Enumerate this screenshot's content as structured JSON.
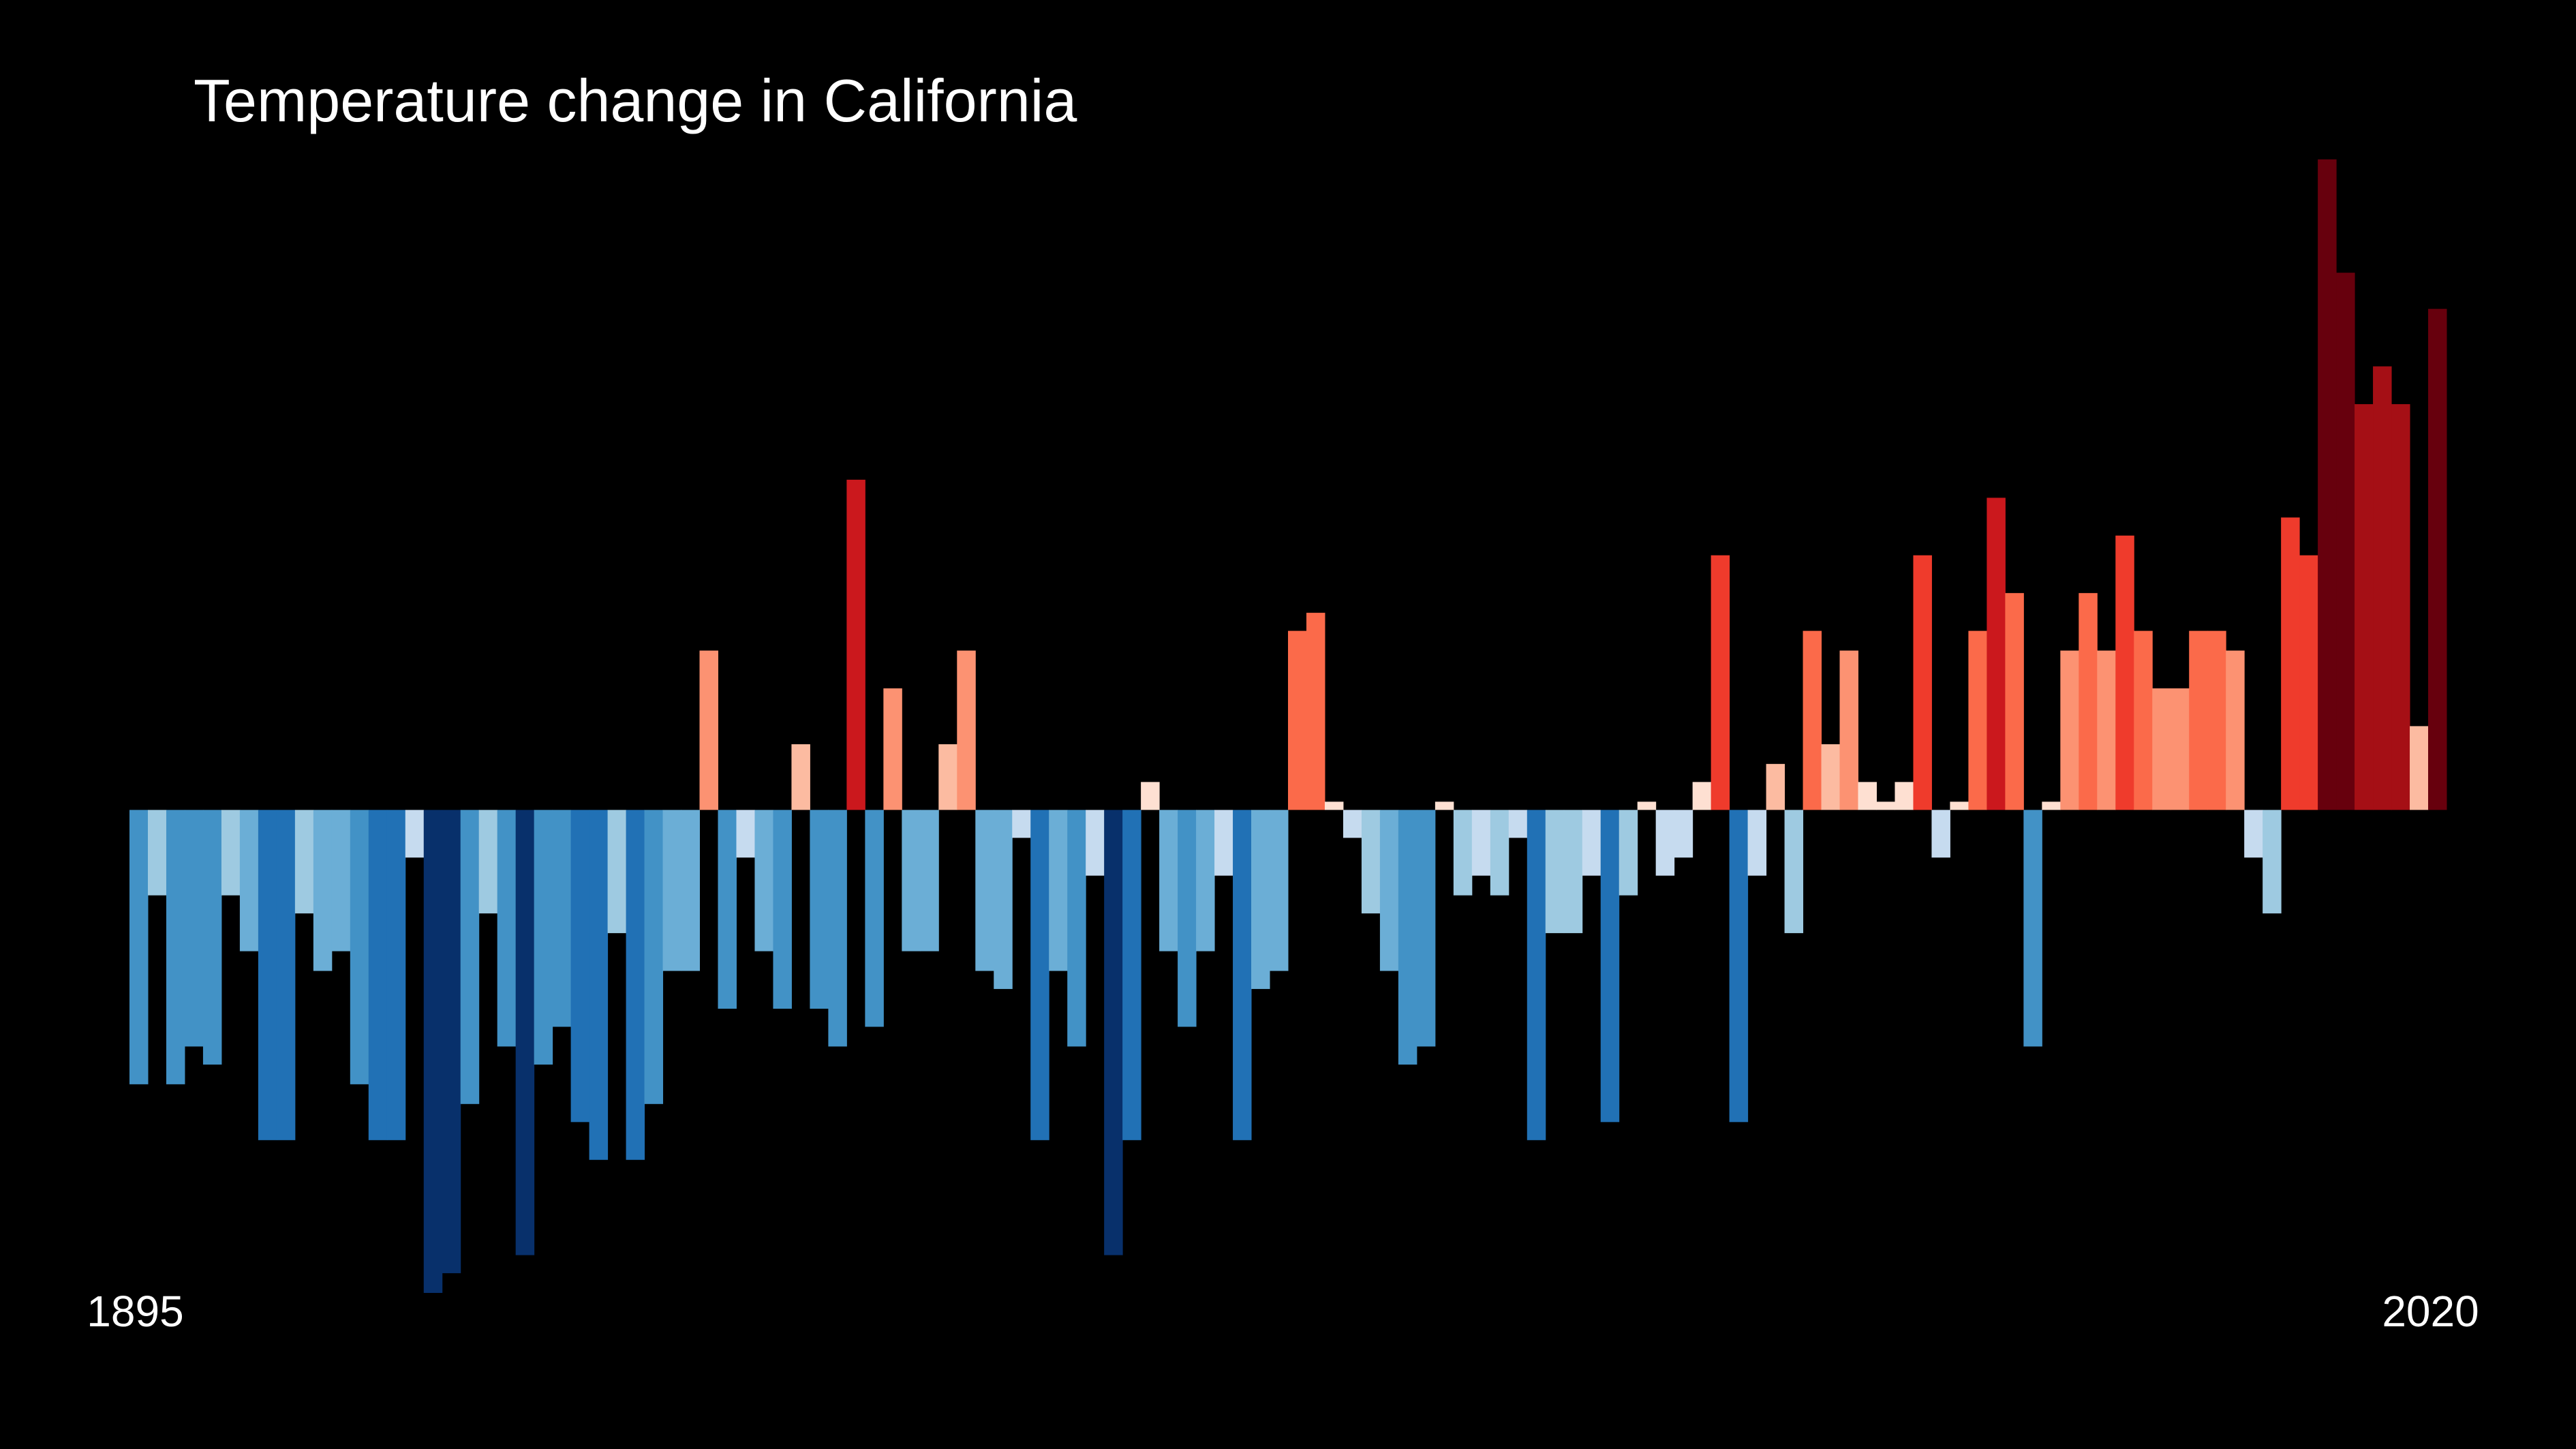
{
  "chart_data": {
    "type": "bar",
    "title": "Temperature change in California",
    "categories": [
      "1895",
      null,
      null,
      null,
      null,
      null,
      null,
      null,
      null,
      null,
      null,
      null,
      null,
      null,
      null,
      null,
      null,
      null,
      null,
      null,
      null,
      null,
      null,
      null,
      null,
      null,
      null,
      null,
      null,
      null,
      null,
      null,
      null,
      null,
      null,
      null,
      null,
      null,
      null,
      null,
      null,
      null,
      null,
      null,
      null,
      null,
      null,
      null,
      null,
      null,
      null,
      null,
      null,
      null,
      null,
      null,
      null,
      null,
      null,
      null,
      null,
      null,
      null,
      null,
      null,
      null,
      null,
      null,
      null,
      null,
      null,
      null,
      null,
      null,
      null,
      null,
      null,
      null,
      null,
      null,
      null,
      null,
      null,
      null,
      null,
      null,
      null,
      null,
      null,
      null,
      null,
      null,
      null,
      null,
      null,
      null,
      null,
      null,
      null,
      null,
      null,
      null,
      null,
      null,
      null,
      null,
      null,
      null,
      null,
      null,
      null,
      null,
      null,
      null,
      null,
      null,
      null,
      null,
      null,
      null,
      null,
      null,
      null,
      null,
      null,
      "2020"
    ],
    "values": [
      -1.67,
      -0.52,
      -1.67,
      -1.44,
      -1.55,
      -0.52,
      -0.86,
      -2.01,
      -2.01,
      -0.63,
      -0.98,
      -0.86,
      -1.67,
      -2.01,
      -2.01,
      -0.29,
      -2.94,
      -2.82,
      -1.79,
      -0.63,
      -1.44,
      -2.71,
      -1.55,
      -1.32,
      -1.9,
      -2.13,
      -0.75,
      -2.13,
      -1.79,
      -0.98,
      -0.98,
      0.97,
      -1.21,
      -0.29,
      -0.86,
      -1.21,
      0.4,
      -1.21,
      -1.44,
      2.01,
      -1.32,
      0.74,
      -0.86,
      -0.86,
      0.4,
      0.97,
      -0.98,
      -1.09,
      -0.17,
      -2.01,
      -0.98,
      -1.44,
      -0.4,
      -2.71,
      -2.01,
      0.17,
      -0.86,
      -1.32,
      -0.86,
      -0.4,
      -2.01,
      -1.09,
      -0.98,
      1.09,
      1.2,
      0.05,
      -0.17,
      -0.63,
      -0.98,
      -1.55,
      -1.44,
      0.05,
      -0.52,
      -0.4,
      -0.52,
      -0.17,
      -2.01,
      -0.75,
      -0.75,
      -0.4,
      -1.9,
      -0.52,
      0.05,
      -0.4,
      -0.29,
      0.17,
      1.55,
      -1.9,
      -0.4,
      0.28,
      -0.75,
      1.09,
      0.4,
      0.97,
      0.17,
      0.05,
      0.17,
      1.55,
      -0.29,
      0.05,
      1.09,
      1.9,
      1.32,
      -1.44,
      0.05,
      0.97,
      1.32,
      0.97,
      1.67,
      1.09,
      0.74,
      0.74,
      1.09,
      1.09,
      0.97,
      -0.29,
      -0.63,
      1.78,
      1.55,
      3.96,
      3.27,
      2.47,
      2.7,
      2.47,
      0.51,
      3.05
    ],
    "colors": [
      "#4292c6",
      "#9ecae1",
      "#4292c6",
      "#4292c6",
      "#4292c6",
      "#9ecae1",
      "#6baed6",
      "#2171b5",
      "#2171b5",
      "#9ecae1",
      "#6baed6",
      "#6baed6",
      "#4292c6",
      "#2171b5",
      "#2171b5",
      "#c6dbef",
      "#08306b",
      "#08306b",
      "#4292c6",
      "#9ecae1",
      "#4292c6",
      "#08306b",
      "#4292c6",
      "#4292c6",
      "#2171b5",
      "#2171b5",
      "#9ecae1",
      "#2171b5",
      "#4292c6",
      "#6baed6",
      "#6baed6",
      "#fc9272",
      "#4292c6",
      "#c6dbef",
      "#6baed6",
      "#4292c6",
      "#fcbba1",
      "#4292c6",
      "#4292c6",
      "#cb181d",
      "#4292c6",
      "#fc9272",
      "#6baed6",
      "#6baed6",
      "#fcbba1",
      "#fc9272",
      "#6baed6",
      "#6baed6",
      "#c6dbef",
      "#2171b5",
      "#6baed6",
      "#4292c6",
      "#c6dbef",
      "#08306b",
      "#2171b5",
      "#fee0d2",
      "#6baed6",
      "#4292c6",
      "#6baed6",
      "#c6dbef",
      "#2171b5",
      "#6baed6",
      "#6baed6",
      "#fb6a4a",
      "#fb6a4a",
      "#fee0d2",
      "#c6dbef",
      "#9ecae1",
      "#6baed6",
      "#4292c6",
      "#4292c6",
      "#fee0d2",
      "#9ecae1",
      "#c6dbef",
      "#9ecae1",
      "#c6dbef",
      "#2171b5",
      "#9ecae1",
      "#9ecae1",
      "#c6dbef",
      "#2171b5",
      "#9ecae1",
      "#fee0d2",
      "#c6dbef",
      "#c6dbef",
      "#fee0d2",
      "#ef3b2c",
      "#2171b5",
      "#c6dbef",
      "#fcbba1",
      "#9ecae1",
      "#fb6a4a",
      "#fcbba1",
      "#fc9272",
      "#fee0d2",
      "#fee0d2",
      "#fee0d2",
      "#ef3b2c",
      "#c6dbef",
      "#fee0d2",
      "#fb6a4a",
      "#cb181d",
      "#fb6a4a",
      "#4292c6",
      "#fee0d2",
      "#fc9272",
      "#fb6a4a",
      "#fc9272",
      "#ef3b2c",
      "#fb6a4a",
      "#fc9272",
      "#fc9272",
      "#fb6a4a",
      "#fb6a4a",
      "#fc9272",
      "#c6dbef",
      "#9ecae1",
      "#ef3b2c",
      "#ef3b2c",
      "#67000d",
      "#67000d",
      "#a50f15",
      "#a50f15",
      "#a50f15",
      "#fcbba1",
      "#67000d"
    ],
    "ylim": [
      -3.89,
      4.93
    ]
  }
}
